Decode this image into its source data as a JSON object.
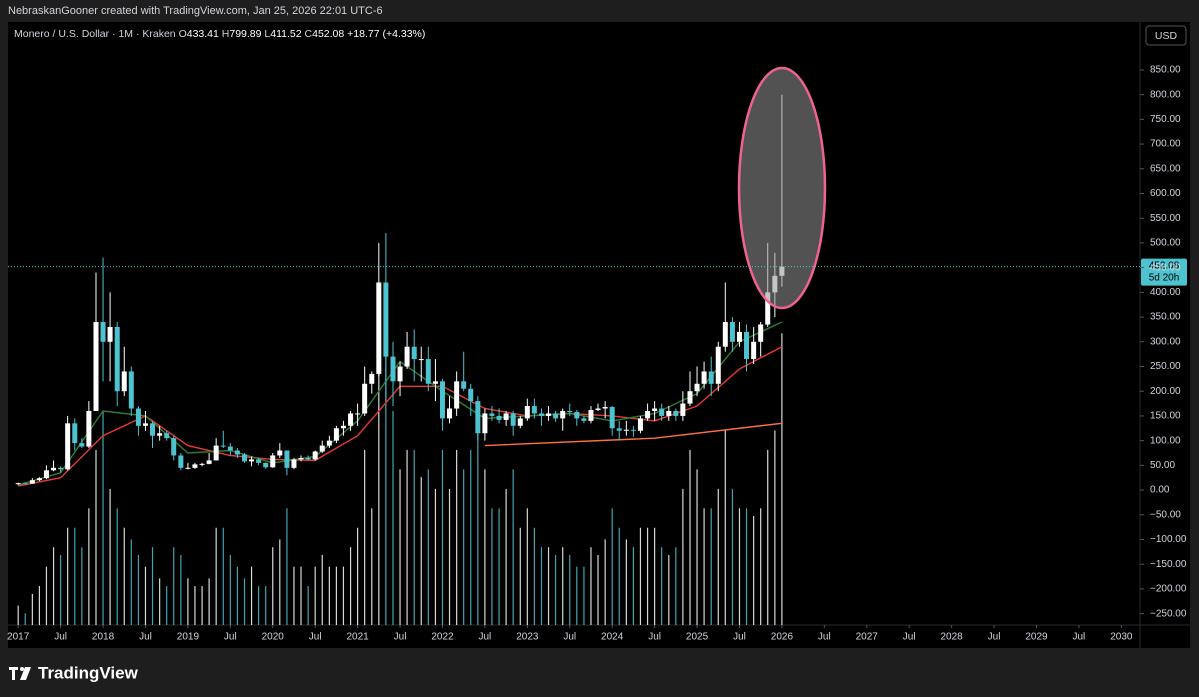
{
  "header": "NebraskanGooner created with TradingView.com, Jan 25, 2026 22:01 UTC-6",
  "currency_button": "USD",
  "footer_logo": "TradingView",
  "chart_data": {
    "type": "candlestick",
    "title": "Monero / U.S. Dollar · 1M · Kraken",
    "legend_prefixes": [
      "O",
      "H",
      "L",
      "C"
    ],
    "change_text": "+18.77 (+4.33%)",
    "countdown": "5d 20h",
    "up_color": "#ffffff",
    "down_color": "#4dc3d0",
    "price_line_color": "#4dc3d0",
    "grid": false,
    "xlim": [
      2016.88,
      2030.22
    ],
    "ylim": [
      -273,
      947
    ],
    "volume_lim": [
      0,
      155
    ],
    "xticks": [
      2017,
      {
        "value": 2017.5,
        "label": "Jul"
      },
      2018,
      {
        "value": 2018.5,
        "label": "Jul"
      },
      2019,
      {
        "value": 2019.5,
        "label": "Jul"
      },
      2020,
      {
        "value": 2020.5,
        "label": "Jul"
      },
      2021,
      {
        "value": 2021.5,
        "label": "Jul"
      },
      2022,
      {
        "value": 2022.5,
        "label": "Jul"
      },
      2023,
      {
        "value": 2023.5,
        "label": "Jul"
      },
      2024,
      {
        "value": 2024.5,
        "label": "Jul"
      },
      2025,
      {
        "value": 2025.5,
        "label": "Jul"
      },
      2026,
      {
        "value": 2026.5,
        "label": "Jul"
      },
      2027,
      {
        "value": 2027.5,
        "label": "Jul"
      },
      2028,
      {
        "value": 2028.5,
        "label": "Jul"
      },
      2029,
      {
        "value": 2029.5,
        "label": "Jul"
      },
      2030
    ],
    "yticks": [
      {
        "value": 850,
        "label": "850.00"
      },
      {
        "value": 800,
        "label": "800.00"
      },
      {
        "value": 750,
        "label": "750.00"
      },
      {
        "value": 700,
        "label": "700.00"
      },
      {
        "value": 650,
        "label": "650.00"
      },
      {
        "value": 600,
        "label": "600.00"
      },
      {
        "value": 550,
        "label": "550.00"
      },
      {
        "value": 500,
        "label": "500.00"
      },
      {
        "value": 450,
        "label": "450.00"
      },
      {
        "value": 400,
        "label": "400.00"
      },
      {
        "value": 350,
        "label": "350.00"
      },
      {
        "value": 300,
        "label": "300.00"
      },
      {
        "value": 250,
        "label": "250.00"
      },
      {
        "value": 200,
        "label": "200.00"
      },
      {
        "value": 150,
        "label": "150.00"
      },
      {
        "value": 100,
        "label": "100.00"
      },
      {
        "value": 50,
        "label": "50.00"
      },
      {
        "value": 0,
        "label": "0.00"
      },
      {
        "value": -50,
        "label": "−50.00"
      },
      {
        "value": -100,
        "label": "−100.00"
      },
      {
        "value": -150,
        "label": "−150.00"
      },
      {
        "value": -200,
        "label": "−200.00"
      },
      {
        "value": -250,
        "label": "−250.00"
      }
    ],
    "x": [
      2017,
      2017.083,
      2017.167,
      2017.25,
      2017.333,
      2017.417,
      2017.5,
      2017.583,
      2017.667,
      2017.75,
      2017.833,
      2017.917,
      2018,
      2018.083,
      2018.167,
      2018.25,
      2018.333,
      2018.417,
      2018.5,
      2018.583,
      2018.667,
      2018.75,
      2018.833,
      2018.917,
      2019,
      2019.083,
      2019.167,
      2019.25,
      2019.333,
      2019.417,
      2019.5,
      2019.583,
      2019.667,
      2019.75,
      2019.833,
      2019.917,
      2020,
      2020.083,
      2020.167,
      2020.25,
      2020.333,
      2020.417,
      2020.5,
      2020.583,
      2020.667,
      2020.75,
      2020.833,
      2020.917,
      2021,
      2021.083,
      2021.167,
      2021.25,
      2021.333,
      2021.417,
      2021.5,
      2021.583,
      2021.667,
      2021.75,
      2021.833,
      2021.917,
      2022,
      2022.083,
      2022.167,
      2022.25,
      2022.333,
      2022.417,
      2022.5,
      2022.583,
      2022.667,
      2022.75,
      2022.833,
      2022.917,
      2023,
      2023.083,
      2023.167,
      2023.25,
      2023.333,
      2023.417,
      2023.5,
      2023.583,
      2023.667,
      2023.75,
      2023.833,
      2023.917,
      2024,
      2024.083,
      2024.167,
      2024.25,
      2024.333,
      2024.417,
      2024.5,
      2024.583,
      2024.667,
      2024.75,
      2024.833,
      2024.917,
      2025,
      2025.083,
      2025.167,
      2025.25,
      2025.333,
      2025.417,
      2025.5,
      2025.583,
      2025.667,
      2025.75,
      2025.833,
      2025.917,
      2026
    ],
    "open": [
      12,
      14,
      13,
      20,
      24,
      40,
      45,
      42,
      135,
      95,
      88,
      160,
      340,
      300,
      330,
      200,
      240,
      165,
      130,
      135,
      110,
      115,
      105,
      70,
      45,
      45,
      52,
      53,
      60,
      90,
      88,
      80,
      72,
      58,
      62,
      55,
      46,
      70,
      80,
      45,
      62,
      65,
      62,
      78,
      90,
      100,
      125,
      130,
      155,
      155,
      215,
      235,
      420,
      270,
      220,
      250,
      290,
      265,
      265,
      215,
      220,
      145,
      165,
      220,
      205,
      180,
      115,
      155,
      150,
      142,
      155,
      130,
      145,
      170,
      155,
      150,
      155,
      145,
      160,
      158,
      145,
      140,
      162,
      165,
      168,
      125,
      120,
      122,
      120,
      145,
      160,
      165,
      150,
      160,
      150,
      175,
      200,
      215,
      240,
      215,
      290,
      340,
      300,
      320,
      265,
      300,
      335,
      400,
      433.41
    ],
    "high": [
      15,
      15,
      24,
      26,
      50,
      60,
      48,
      150,
      145,
      105,
      180,
      440,
      470,
      400,
      340,
      290,
      250,
      170,
      160,
      140,
      130,
      120,
      110,
      75,
      55,
      55,
      55,
      75,
      105,
      120,
      95,
      85,
      75,
      68,
      65,
      56,
      75,
      95,
      80,
      65,
      70,
      70,
      80,
      100,
      110,
      130,
      140,
      160,
      175,
      250,
      240,
      500,
      520,
      300,
      260,
      320,
      325,
      290,
      290,
      265,
      225,
      190,
      240,
      280,
      215,
      190,
      165,
      170,
      165,
      160,
      160,
      150,
      185,
      185,
      165,
      170,
      160,
      165,
      175,
      162,
      150,
      170,
      175,
      180,
      170,
      140,
      140,
      130,
      150,
      175,
      180,
      175,
      170,
      165,
      200,
      240,
      250,
      260,
      270,
      300,
      420,
      350,
      340,
      335,
      330,
      340,
      500,
      480,
      799.89
    ],
    "low": [
      10,
      12,
      13,
      18,
      22,
      38,
      35,
      40,
      80,
      85,
      85,
      160,
      220,
      220,
      170,
      190,
      150,
      110,
      120,
      85,
      100,
      100,
      60,
      40,
      42,
      43,
      48,
      52,
      60,
      85,
      70,
      65,
      55,
      48,
      50,
      43,
      45,
      65,
      30,
      42,
      58,
      60,
      60,
      75,
      85,
      95,
      110,
      120,
      130,
      150,
      195,
      230,
      180,
      170,
      190,
      245,
      220,
      220,
      200,
      180,
      120,
      135,
      150,
      200,
      150,
      100,
      100,
      140,
      135,
      130,
      110,
      125,
      140,
      145,
      130,
      140,
      138,
      120,
      150,
      130,
      135,
      135,
      160,
      145,
      110,
      100,
      110,
      108,
      115,
      140,
      140,
      140,
      140,
      140,
      140,
      170,
      190,
      205,
      190,
      200,
      280,
      280,
      290,
      240,
      255,
      270,
      330,
      350,
      411.52
    ],
    "close": [
      14,
      13,
      20,
      24,
      40,
      45,
      42,
      135,
      95,
      88,
      160,
      340,
      300,
      330,
      200,
      240,
      165,
      130,
      135,
      110,
      115,
      105,
      70,
      45,
      45,
      52,
      53,
      60,
      90,
      88,
      80,
      72,
      58,
      62,
      55,
      46,
      70,
      80,
      45,
      62,
      65,
      62,
      78,
      90,
      100,
      125,
      130,
      155,
      155,
      215,
      235,
      420,
      270,
      220,
      250,
      290,
      265,
      265,
      215,
      220,
      145,
      165,
      220,
      205,
      180,
      115,
      155,
      150,
      142,
      155,
      130,
      145,
      170,
      155,
      150,
      155,
      145,
      160,
      158,
      145,
      140,
      162,
      165,
      168,
      125,
      120,
      122,
      120,
      145,
      160,
      165,
      150,
      160,
      150,
      175,
      200,
      215,
      240,
      215,
      290,
      340,
      300,
      320,
      265,
      300,
      335,
      400,
      433.41,
      452.08
    ],
    "volume": [
      5,
      3,
      8,
      10,
      15,
      20,
      18,
      25,
      25,
      20,
      30,
      45,
      55,
      35,
      30,
      25,
      22,
      18,
      15,
      20,
      12,
      10,
      20,
      18,
      12,
      10,
      10,
      12,
      25,
      25,
      18,
      15,
      12,
      15,
      10,
      10,
      20,
      22,
      30,
      15,
      15,
      10,
      15,
      18,
      15,
      15,
      15,
      20,
      25,
      45,
      30,
      85,
      70,
      55,
      40,
      45,
      45,
      38,
      40,
      35,
      45,
      35,
      45,
      40,
      45,
      50,
      40,
      30,
      30,
      35,
      40,
      25,
      30,
      25,
      20,
      20,
      18,
      20,
      18,
      15,
      15,
      20,
      18,
      22,
      30,
      25,
      22,
      20,
      25,
      25,
      25,
      20,
      18,
      20,
      35,
      45,
      40,
      30,
      30,
      35,
      50,
      35,
      30,
      30,
      28,
      30,
      45,
      50,
      75
    ],
    "overlays": [
      {
        "color": "#e53935",
        "x": [
          2017,
          2017.5,
          2018,
          2018.5,
          2019,
          2019.5,
          2020,
          2020.5,
          2021,
          2021.5,
          2022,
          2022.5,
          2023,
          2023.5,
          2024,
          2024.5,
          2025,
          2025.5,
          2026
        ],
        "values": [
          8,
          25,
          110,
          150,
          90,
          70,
          62,
          60,
          110,
          210,
          210,
          165,
          150,
          155,
          150,
          140,
          170,
          245,
          290
        ]
      },
      {
        "color": "#2e7d32",
        "x": [
          2017,
          2017.5,
          2018,
          2018.5,
          2019,
          2019.5,
          2020,
          2020.5,
          2021,
          2021.5,
          2022,
          2022.5,
          2023,
          2023.5,
          2024,
          2024.5,
          2025,
          2025.5,
          2026
        ],
        "values": [
          10,
          35,
          160,
          150,
          75,
          80,
          55,
          68,
          140,
          260,
          200,
          145,
          150,
          155,
          140,
          155,
          195,
          300,
          340
        ]
      },
      {
        "color": "#ff7043",
        "x": [
          2022.5,
          2024.5,
          2026
        ],
        "values": [
          90,
          105,
          135
        ]
      }
    ]
  }
}
